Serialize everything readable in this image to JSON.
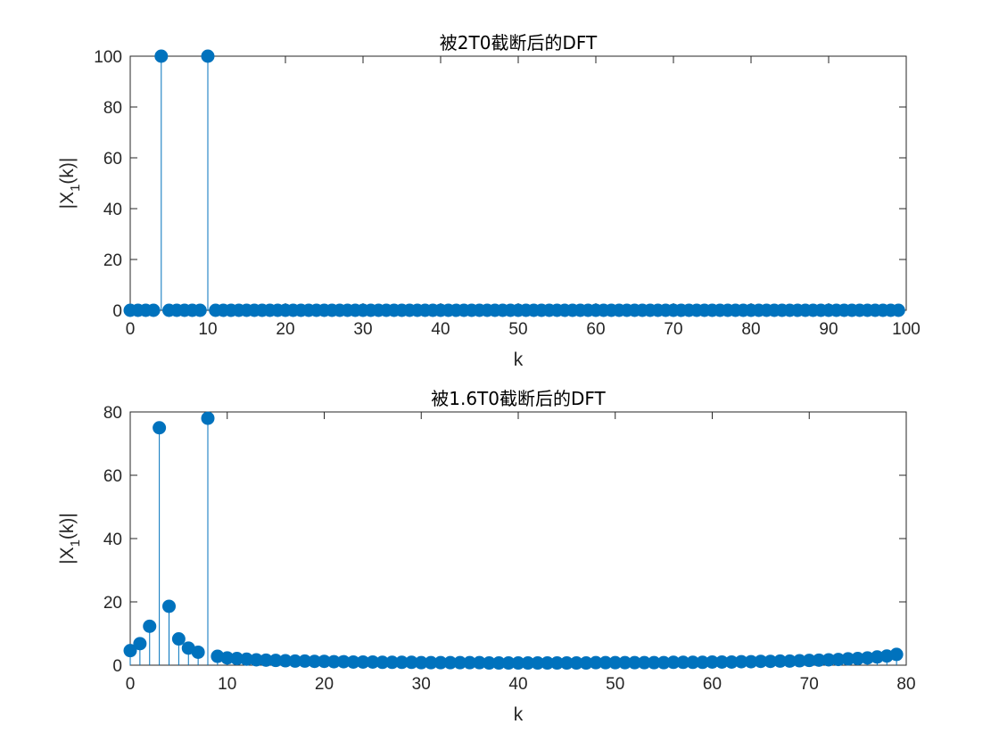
{
  "chart_data": [
    {
      "type": "stem",
      "title": "被2T0截断后的DFT",
      "xlabel": "k",
      "ylabel_main": "|X",
      "ylabel_sub": "1",
      "ylabel_tail": "(k)|",
      "xlim": [
        0,
        100
      ],
      "ylim": [
        0,
        100
      ],
      "xticks": [
        0,
        10,
        20,
        30,
        40,
        50,
        60,
        70,
        80,
        90,
        100
      ],
      "yticks": [
        0,
        20,
        40,
        60,
        80,
        100
      ],
      "color": "#0072BD",
      "x": [
        0,
        1,
        2,
        3,
        4,
        5,
        6,
        7,
        8,
        9,
        10,
        11,
        12,
        13,
        14,
        15,
        16,
        17,
        18,
        19,
        20,
        21,
        22,
        23,
        24,
        25,
        26,
        27,
        28,
        29,
        30,
        31,
        32,
        33,
        34,
        35,
        36,
        37,
        38,
        39,
        40,
        41,
        42,
        43,
        44,
        45,
        46,
        47,
        48,
        49,
        50,
        51,
        52,
        53,
        54,
        55,
        56,
        57,
        58,
        59,
        60,
        61,
        62,
        63,
        64,
        65,
        66,
        67,
        68,
        69,
        70,
        71,
        72,
        73,
        74,
        75,
        76,
        77,
        78,
        79,
        80,
        81,
        82,
        83,
        84,
        85,
        86,
        87,
        88,
        89,
        90,
        91,
        92,
        93,
        94,
        95,
        96,
        97,
        98,
        99
      ],
      "values": [
        0,
        0,
        0,
        0,
        100,
        0,
        0,
        0,
        0,
        0,
        100,
        0,
        0,
        0,
        0,
        0,
        0,
        0,
        0,
        0,
        0,
        0,
        0,
        0,
        0,
        0,
        0,
        0,
        0,
        0,
        0,
        0,
        0,
        0,
        0,
        0,
        0,
        0,
        0,
        0,
        0,
        0,
        0,
        0,
        0,
        0,
        0,
        0,
        0,
        0,
        0,
        0,
        0,
        0,
        0,
        0,
        0,
        0,
        0,
        0,
        0,
        0,
        0,
        0,
        0,
        0,
        0,
        0,
        0,
        0,
        0,
        0,
        0,
        0,
        0,
        0,
        0,
        0,
        0,
        0,
        0,
        0,
        0,
        0,
        0,
        0,
        0,
        0,
        0,
        0,
        0,
        0,
        0,
        0,
        0,
        0,
        0,
        0,
        0,
        0
      ]
    },
    {
      "type": "stem",
      "title": "被1.6T0截断后的DFT",
      "xlabel": "k",
      "ylabel_main": "|X",
      "ylabel_sub": "1",
      "ylabel_tail": "(k)|",
      "xlim": [
        0,
        80
      ],
      "ylim": [
        0,
        80
      ],
      "xticks": [
        0,
        10,
        20,
        30,
        40,
        50,
        60,
        70,
        80
      ],
      "yticks": [
        0,
        20,
        40,
        60,
        80
      ],
      "color": "#0072BD",
      "x": [
        0,
        1,
        2,
        3,
        4,
        5,
        6,
        7,
        8,
        9,
        10,
        11,
        12,
        13,
        14,
        15,
        16,
        17,
        18,
        19,
        20,
        21,
        22,
        23,
        24,
        25,
        26,
        27,
        28,
        29,
        30,
        31,
        32,
        33,
        34,
        35,
        36,
        37,
        38,
        39,
        40,
        41,
        42,
        43,
        44,
        45,
        46,
        47,
        48,
        49,
        50,
        51,
        52,
        53,
        54,
        55,
        56,
        57,
        58,
        59,
        60,
        61,
        62,
        63,
        64,
        65,
        66,
        67,
        68,
        69,
        70,
        71,
        72,
        73,
        74,
        75,
        76,
        77,
        78,
        79
      ],
      "values": [
        4.6,
        6.8,
        12.3,
        75,
        18.6,
        8.3,
        5.4,
        4.1,
        78,
        2.8,
        2.3,
        2.1,
        1.9,
        1.7,
        1.6,
        1.5,
        1.4,
        1.3,
        1.3,
        1.2,
        1.2,
        1.1,
        1.1,
        1.0,
        1.0,
        1.0,
        0.9,
        0.9,
        0.9,
        0.9,
        0.8,
        0.8,
        0.8,
        0.8,
        0.8,
        0.8,
        0.8,
        0.7,
        0.7,
        0.7,
        0.7,
        0.7,
        0.7,
        0.7,
        0.7,
        0.7,
        0.7,
        0.7,
        0.8,
        0.8,
        0.8,
        0.8,
        0.8,
        0.8,
        0.8,
        0.8,
        0.9,
        0.9,
        0.9,
        0.9,
        1.0,
        1.0,
        1.0,
        1.1,
        1.1,
        1.2,
        1.2,
        1.3,
        1.3,
        1.4,
        1.5,
        1.6,
        1.7,
        1.8,
        2.0,
        2.1,
        2.3,
        2.6,
        2.9,
        3.4
      ]
    }
  ]
}
